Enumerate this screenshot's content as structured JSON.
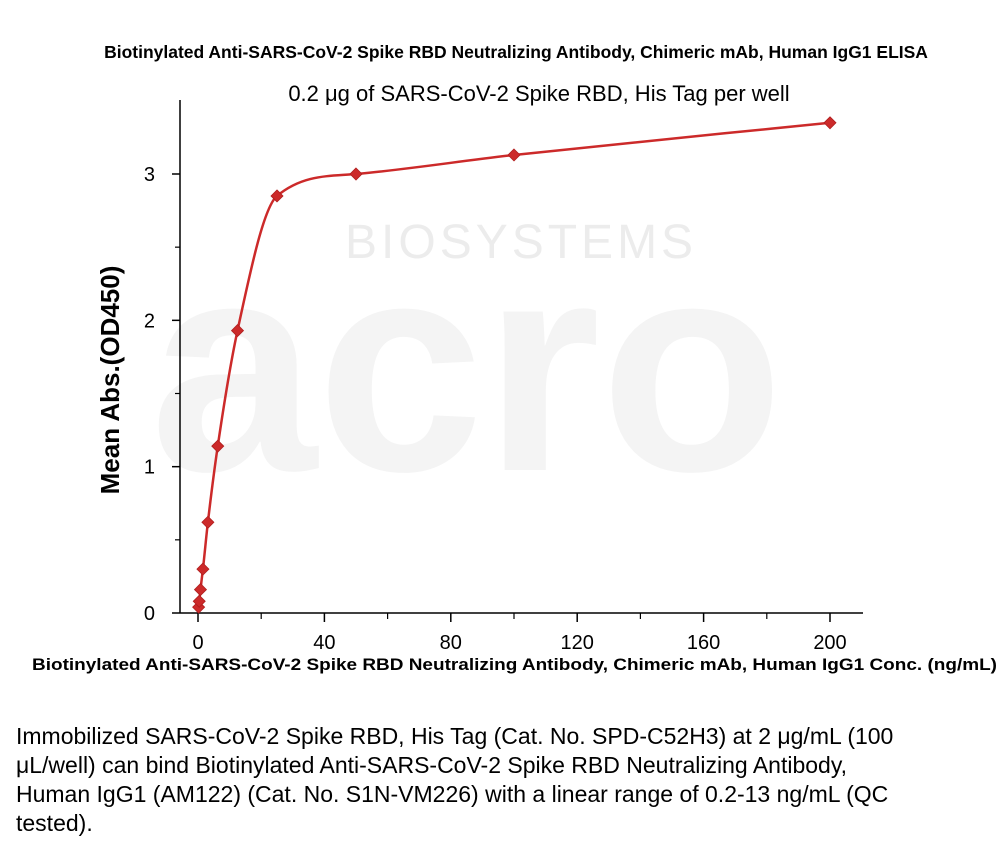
{
  "watermark": {
    "text": "BIOSYSTEMS",
    "logo": "acro"
  },
  "chart_data": {
    "type": "scatter",
    "title": "Biotinylated Anti-SARS-CoV-2 Spike RBD Neutralizing Antibody, Chimeric mAb, Human IgG1 ELISA",
    "subtitle": "0.2 μg of SARS-CoV-2 Spike RBD, His Tag per well",
    "xlabel": "Biotinylated Anti-SARS-CoV-2 Spike RBD Neutralizing Antibody, Chimeric mAb, Human IgG1 Conc. (ng/mL)",
    "ylabel": "Mean Abs.(OD450)",
    "xlim": [
      -5,
      205
    ],
    "ylim": [
      0,
      3.5
    ],
    "xticks": [
      0,
      40,
      80,
      120,
      160,
      200
    ],
    "yticks": [
      0,
      1,
      2,
      3
    ],
    "grid": false,
    "color": "#cc2a2a",
    "series": [
      {
        "marker": "diamond",
        "x": [
          0.2,
          0.39,
          0.78,
          1.56,
          3.13,
          6.25,
          12.5,
          25,
          50,
          100,
          200
        ],
        "y": [
          0.04,
          0.08,
          0.16,
          0.3,
          0.62,
          1.14,
          1.93,
          2.85,
          3.0,
          3.13,
          3.35
        ]
      }
    ]
  },
  "caption": "Immobilized SARS-CoV-2 Spike RBD, His Tag (Cat. No. SPD-C52H3) at 2 μg/mL (100 μL/well) can bind Biotinylated Anti-SARS-CoV-2 Spike RBD Neutralizing Antibody, Human IgG1 (AM122) (Cat. No. S1N-VM226) with a linear range of 0.2-13 ng/mL (QC tested)."
}
